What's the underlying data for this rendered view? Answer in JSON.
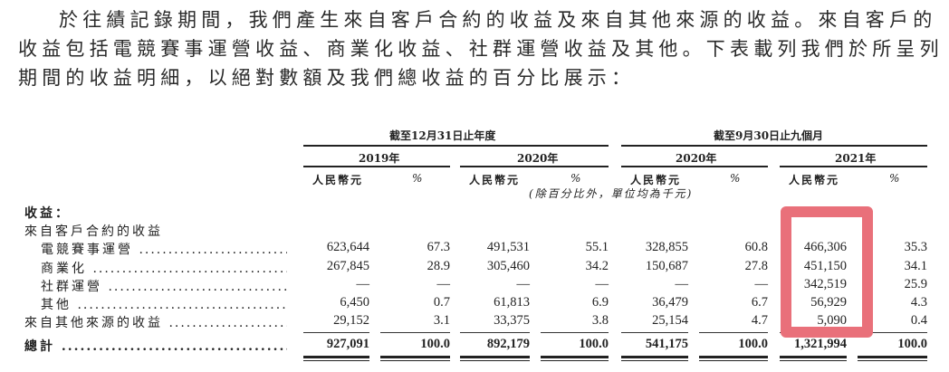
{
  "paragraph": [
    "於往績記錄期間，我們產生來自客戶合約的收益及來自其他來源的收益。來自客戶的",
    "收益包括電競賽事運營收益、商業化收益、社群運營收益及其他。下表載列我們於所呈列",
    "期間的收益明細，以絕對數額及我們總收益的百分比展示："
  ],
  "table": {
    "group_headers": [
      "截至12月31日止年度",
      "截至9月30日止九個月"
    ],
    "years": [
      "2019年",
      "2020年",
      "2020年",
      "2021年"
    ],
    "col_headers": [
      "人民幣元",
      "%",
      "人民幣元",
      "%",
      "人民幣元",
      "%",
      "人民幣元",
      "%"
    ],
    "unit_note": "(除百分比外，單位均為千元)",
    "section_label": "收益：",
    "subsection_label": "來自客戶合約的收益",
    "rows": [
      {
        "label": "電競賽事運營",
        "values": [
          "623,644",
          "67.3",
          "491,531",
          "55.1",
          "328,855",
          "60.8",
          "466,306",
          "35.3"
        ]
      },
      {
        "label": "商業化",
        "values": [
          "267,845",
          "28.9",
          "305,460",
          "34.2",
          "150,687",
          "27.8",
          "451,150",
          "34.1"
        ]
      },
      {
        "label": "社群運營",
        "values": [
          "—",
          "—",
          "—",
          "—",
          "—",
          "—",
          "342,519",
          "25.9"
        ]
      },
      {
        "label": "其他",
        "values": [
          "6,450",
          "0.7",
          "61,813",
          "6.9",
          "36,479",
          "6.7",
          "56,929",
          "4.3"
        ]
      },
      {
        "label": "來自其他來源的收益",
        "values": [
          "29,152",
          "3.1",
          "33,375",
          "3.8",
          "25,154",
          "4.7",
          "5,090",
          "0.4"
        ]
      }
    ],
    "total": {
      "label": "總計",
      "values": [
        "927,091",
        "100.0",
        "892,179",
        "100.0",
        "541,175",
        "100.0",
        "1,321,994",
        "100.0"
      ]
    }
  },
  "highlight_color": "#e9707a"
}
